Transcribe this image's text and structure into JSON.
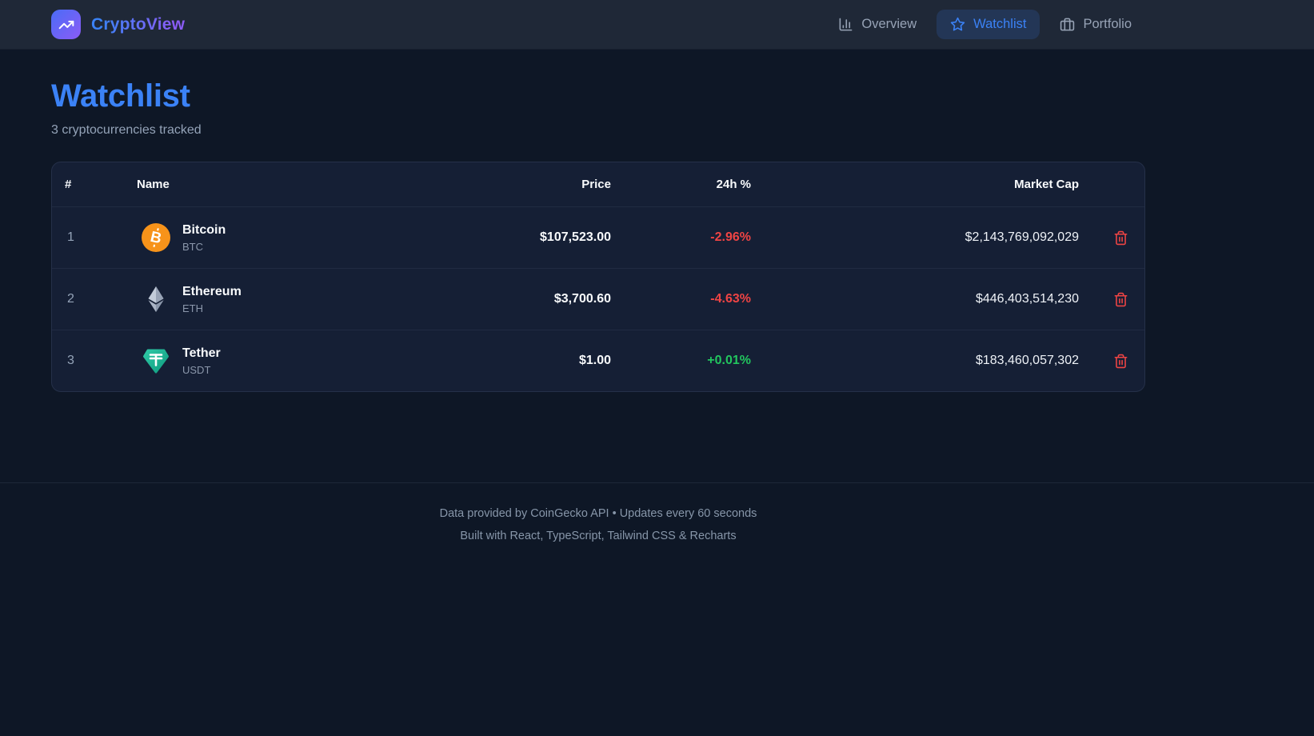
{
  "nav": {
    "brand": "CryptoView",
    "items": [
      {
        "label": "Overview",
        "icon": "bar-chart-icon",
        "active": false
      },
      {
        "label": "Watchlist",
        "icon": "star-icon",
        "active": true
      },
      {
        "label": "Portfolio",
        "icon": "briefcase-icon",
        "active": false
      }
    ]
  },
  "page": {
    "title": "Watchlist",
    "subtitle": "3 cryptocurrencies tracked"
  },
  "table": {
    "headers": {
      "rank": "#",
      "name": "Name",
      "price": "Price",
      "change": "24h %",
      "market_cap": "Market Cap"
    },
    "rows": [
      {
        "rank": "1",
        "name": "Bitcoin",
        "symbol": "BTC",
        "icon": "bitcoin-icon",
        "price": "$107,523.00",
        "change": "-2.96%",
        "change_dir": "down",
        "market_cap": "$2,143,769,092,029"
      },
      {
        "rank": "2",
        "name": "Ethereum",
        "symbol": "ETH",
        "icon": "ethereum-icon",
        "price": "$3,700.60",
        "change": "-4.63%",
        "change_dir": "down",
        "market_cap": "$446,403,514,230"
      },
      {
        "rank": "3",
        "name": "Tether",
        "symbol": "USDT",
        "icon": "tether-icon",
        "price": "$1.00",
        "change": "+0.01%",
        "change_dir": "up",
        "market_cap": "$183,460,057,302"
      }
    ]
  },
  "footer": {
    "line1": "Data provided by CoinGecko API • Updates every 60 seconds",
    "line2": "Built with React, TypeScript, Tailwind CSS & Recharts"
  },
  "colors": {
    "accent_blue": "#3b82f6",
    "accent_purple": "#8b5cf6",
    "positive": "#22c55e",
    "negative": "#ef4444",
    "bitcoin_orange": "#f7931a",
    "tether_teal": "#17a98c",
    "page_bg": "#0e1726",
    "nav_bg": "#1f2837",
    "card_bg": "#151f35"
  }
}
